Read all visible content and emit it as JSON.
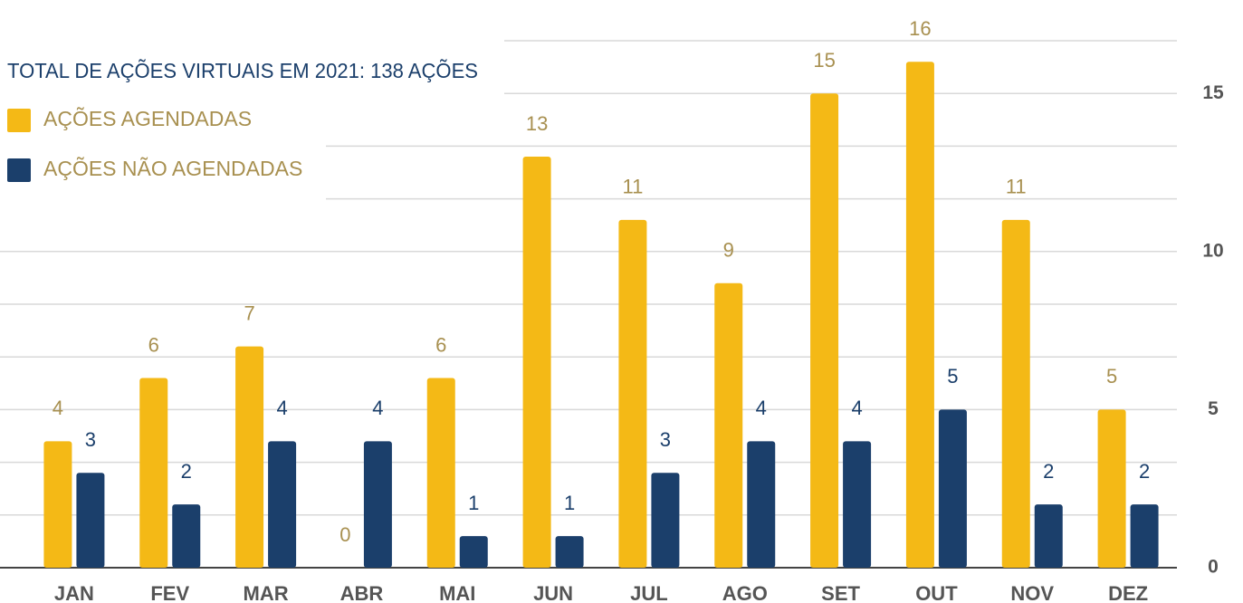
{
  "chart_data": {
    "type": "bar",
    "title": "TOTAL DE AÇÕES VIRTUAIS EM 2021: 138 AÇÕES",
    "categories": [
      "JAN",
      "FEV",
      "MAR",
      "ABR",
      "MAI",
      "JUN",
      "JUL",
      "AGO",
      "SET",
      "OUT",
      "NOV",
      "DEZ"
    ],
    "series": [
      {
        "name": "AÇÕES AGENDADAS",
        "color": "#f4b916",
        "label_color": "#a89050",
        "values": [
          4,
          6,
          7,
          0,
          6,
          13,
          11,
          9,
          15,
          16,
          11,
          5
        ]
      },
      {
        "name": "AÇÕES NÃO AGENDADAS",
        "color": "#1b3f6b",
        "label_color": "#1b3f6b",
        "values": [
          3,
          2,
          4,
          4,
          1,
          1,
          3,
          4,
          4,
          5,
          2,
          2
        ]
      }
    ],
    "ylim": [
      0,
      16.667
    ],
    "yticks": [
      0,
      5,
      10,
      15
    ],
    "minor_yticks": [
      1.667,
      3.333,
      6.667,
      8.333,
      11.667,
      13.333,
      16.667
    ],
    "grid": true,
    "y_axis_side": "right",
    "legend": "upper left"
  }
}
